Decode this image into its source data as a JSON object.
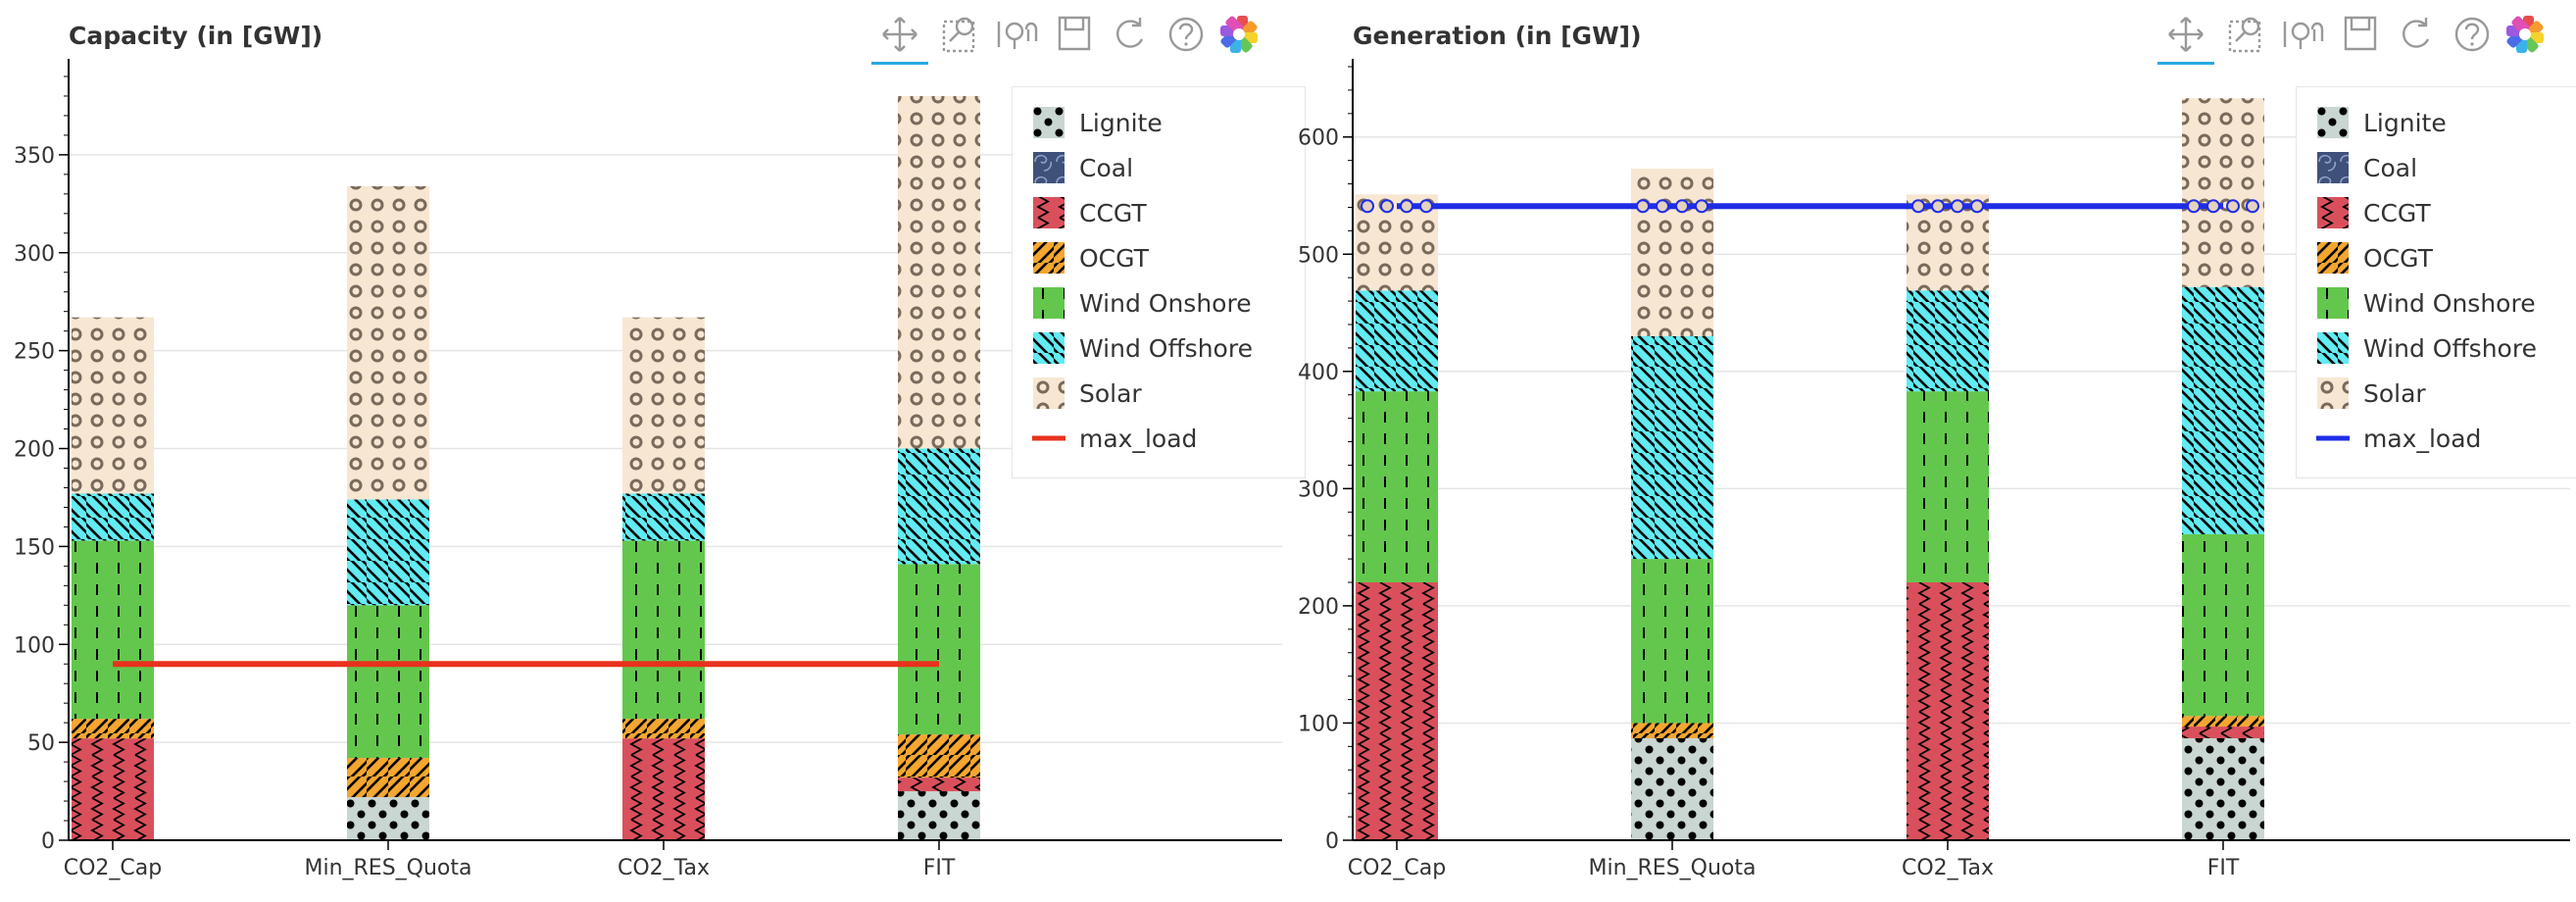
{
  "panels": [
    {
      "title": "Capacity (in [GW])",
      "line_color": "#e8321e",
      "legend": [
        "Lignite",
        "Coal",
        "CCGT",
        "OCGT",
        "Wind Onshore",
        "Wind Offshore",
        "Solar",
        "max_load"
      ],
      "toolbar": [
        "pan-icon",
        "box-zoom-icon",
        "wheel-zoom-icon",
        "save-icon",
        "reset-icon",
        "help-icon",
        "bokeh-logo-icon"
      ]
    },
    {
      "title": "Generation (in [GW])",
      "line_color": "#1f2de6",
      "legend": [
        "Lignite",
        "Coal",
        "CCGT",
        "OCGT",
        "Wind Onshore",
        "Wind Offshore",
        "Solar",
        "max_load"
      ],
      "toolbar": [
        "pan-icon",
        "box-zoom-icon",
        "wheel-zoom-icon",
        "save-icon",
        "reset-icon",
        "help-icon",
        "bokeh-logo-icon"
      ]
    }
  ],
  "technologies": [
    {
      "name": "Lignite",
      "color": "#c9d6d1",
      "pattern": "dots"
    },
    {
      "name": "Coal",
      "color": "#3f5179",
      "pattern": "swirl"
    },
    {
      "name": "CCGT",
      "color": "#d9505c",
      "pattern": "zigzag"
    },
    {
      "name": "OCGT",
      "color": "#f4a630",
      "pattern": "hatch-forward"
    },
    {
      "name": "Wind Onshore",
      "color": "#63c74d",
      "pattern": "vertical-dash"
    },
    {
      "name": "Wind Offshore",
      "color": "#62ebf2",
      "pattern": "hatch-back"
    },
    {
      "name": "Solar",
      "color": "#f7e7d2",
      "pattern": "rings"
    }
  ],
  "chart_data": [
    {
      "type": "bar",
      "stacked": true,
      "title": "Capacity (in [GW])",
      "categories": [
        "CO2_Cap",
        "Min_RES_Quota",
        "CO2_Tax",
        "FIT"
      ],
      "ylim": [
        0,
        395
      ],
      "yticks": [
        0,
        50,
        100,
        150,
        200,
        250,
        300,
        350
      ],
      "grid": "horizontal",
      "legend_position": "top-right",
      "series": [
        {
          "name": "Lignite",
          "values": [
            0,
            22,
            0,
            25
          ]
        },
        {
          "name": "Coal",
          "values": [
            0,
            0,
            0,
            0
          ]
        },
        {
          "name": "CCGT",
          "values": [
            52,
            0,
            52,
            7
          ]
        },
        {
          "name": "OCGT",
          "values": [
            10,
            20,
            10,
            22
          ]
        },
        {
          "name": "Wind Onshore",
          "values": [
            91,
            78,
            91,
            87
          ]
        },
        {
          "name": "Wind Offshore",
          "values": [
            24,
            54,
            24,
            59
          ]
        },
        {
          "name": "Solar",
          "values": [
            90,
            160,
            90,
            180
          ]
        }
      ],
      "lines": [
        {
          "name": "max_load",
          "values": [
            90,
            90,
            90,
            90
          ],
          "markers": false
        }
      ]
    },
    {
      "type": "bar",
      "stacked": true,
      "title": "Generation (in [GW])",
      "categories": [
        "CO2_Cap",
        "Min_RES_Quota",
        "CO2_Tax",
        "FIT"
      ],
      "ylim": [
        0,
        660
      ],
      "yticks": [
        0,
        100,
        200,
        300,
        400,
        500,
        600
      ],
      "grid": "horizontal",
      "legend_position": "top-right",
      "series": [
        {
          "name": "Lignite",
          "values": [
            0,
            87,
            0,
            87
          ]
        },
        {
          "name": "Coal",
          "values": [
            0,
            0,
            0,
            0
          ]
        },
        {
          "name": "CCGT",
          "values": [
            220,
            0,
            220,
            10
          ]
        },
        {
          "name": "OCGT",
          "values": [
            0,
            13,
            0,
            9
          ]
        },
        {
          "name": "Wind Onshore",
          "values": [
            163,
            140,
            163,
            155
          ]
        },
        {
          "name": "Wind Offshore",
          "values": [
            86,
            190,
            86,
            211
          ]
        },
        {
          "name": "Solar",
          "values": [
            82,
            143,
            82,
            161
          ]
        }
      ],
      "lines": [
        {
          "name": "max_load",
          "values": [
            541,
            541,
            541,
            541
          ],
          "markers": true
        }
      ]
    }
  ]
}
